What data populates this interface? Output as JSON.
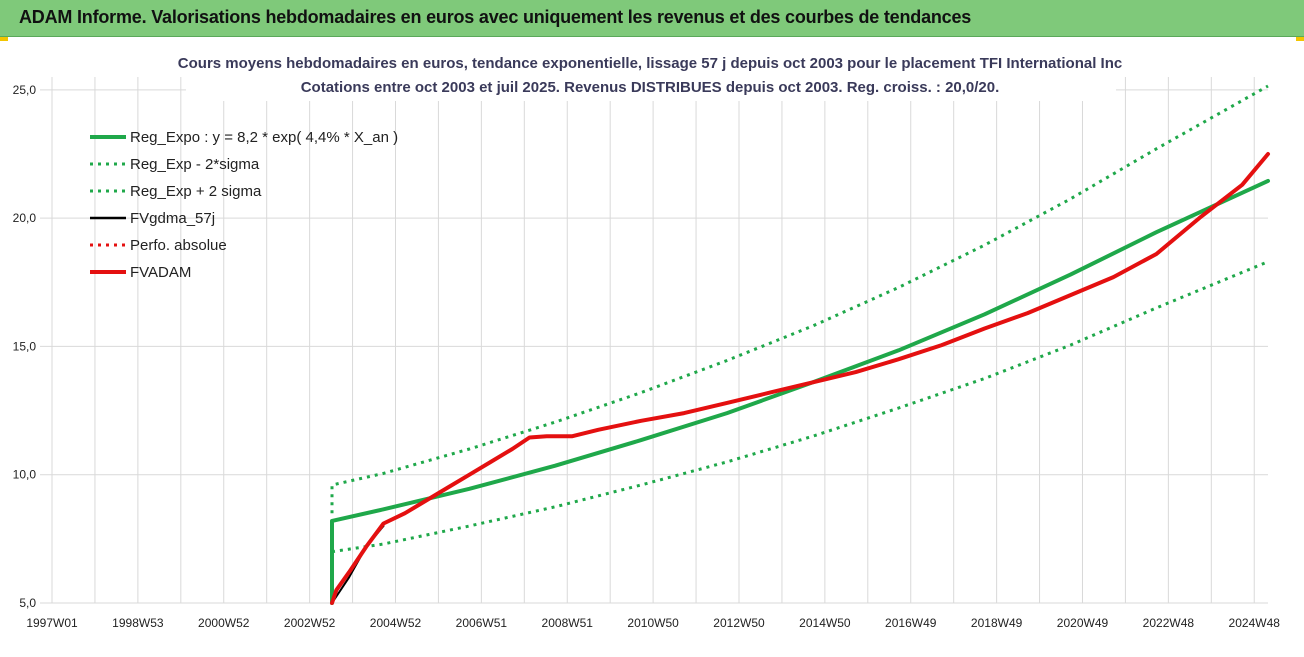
{
  "banner": {
    "title": "ADAM Informe. Valorisations hebdomadaires en euros avec uniquement les revenus et des courbes de tendances"
  },
  "colors": {
    "banner_bg": "#7fc97a",
    "reg_expo": "#1fa84a",
    "fvadam": "#e41010",
    "fvgdma": "#000000",
    "grid": "#d9d9d9"
  },
  "chart_data": {
    "type": "line",
    "title": "Cours moyens hebdomadaires en euros, tendance exponentielle, lissage 57 j depuis oct 2003 pour le placement TFI International Inc",
    "subtitle": "Cotations entre oct 2003 et juil 2025. Revenus DISTRIBUES depuis oct 2003. Reg. croiss. : 20,0/20.",
    "xlabel": "",
    "ylabel": "",
    "x_ticks": [
      "1997W01",
      "1998W53",
      "2000W52",
      "2002W52",
      "2004W52",
      "2006W51",
      "2008W51",
      "2010W50",
      "2012W50",
      "2014W50",
      "2016W49",
      "2018W49",
      "2020W49",
      "2022W48",
      "2024W48"
    ],
    "xlim": [
      1997.0,
      2025.6
    ],
    "y_ticks": [
      "5,0",
      "10,0",
      "15,0",
      "20,0",
      "25,0"
    ],
    "ylim": [
      5,
      25.5
    ],
    "grid": true,
    "legend_position": "top-left",
    "series": [
      {
        "name": "Reg_Expo : y = 8,2 * exp( 4,4% *  X_an )",
        "style": "solid",
        "color": "#1fa84a",
        "points": [
          [
            2003.8,
            5.0
          ],
          [
            2003.8,
            8.2
          ],
          [
            2005.0,
            8.65
          ],
          [
            2007.0,
            9.45
          ],
          [
            2009.0,
            10.35
          ],
          [
            2011.0,
            11.35
          ],
          [
            2013.0,
            12.4
          ],
          [
            2015.0,
            13.6
          ],
          [
            2017.0,
            14.85
          ],
          [
            2019.0,
            16.25
          ],
          [
            2021.0,
            17.8
          ],
          [
            2023.0,
            19.45
          ],
          [
            2025.6,
            21.45
          ]
        ]
      },
      {
        "name": "Reg_Exp - 2*sigma",
        "style": "dotted",
        "color": "#1fa84a",
        "points": [
          [
            2003.8,
            7.0
          ],
          [
            2005.0,
            7.3
          ],
          [
            2007.0,
            8.0
          ],
          [
            2009.0,
            8.75
          ],
          [
            2011.0,
            9.6
          ],
          [
            2013.0,
            10.5
          ],
          [
            2015.0,
            11.5
          ],
          [
            2017.0,
            12.6
          ],
          [
            2019.0,
            13.75
          ],
          [
            2021.0,
            15.05
          ],
          [
            2023.0,
            16.5
          ],
          [
            2025.6,
            18.3
          ]
        ]
      },
      {
        "name": "Reg_Exp + 2 sigma",
        "style": "dotted",
        "color": "#1fa84a",
        "points": [
          [
            2003.8,
            8.5
          ],
          [
            2003.8,
            9.6
          ],
          [
            2005.0,
            10.05
          ],
          [
            2007.0,
            11.0
          ],
          [
            2009.0,
            12.05
          ],
          [
            2011.0,
            13.2
          ],
          [
            2013.0,
            14.45
          ],
          [
            2015.0,
            15.8
          ],
          [
            2017.0,
            17.3
          ],
          [
            2019.0,
            18.95
          ],
          [
            2021.0,
            20.75
          ],
          [
            2023.0,
            22.7
          ],
          [
            2025.6,
            25.15
          ]
        ]
      },
      {
        "name": "FVgdma_57j",
        "style": "solid",
        "color": "#000000",
        "points": [
          [
            2003.8,
            5.0
          ],
          [
            2004.2,
            6.0
          ],
          [
            2004.6,
            7.2
          ],
          [
            2005.0,
            8.0
          ]
        ]
      },
      {
        "name": "Perfo. absolue",
        "style": "dotted",
        "color": "#e41010",
        "points": []
      },
      {
        "name": "FVADAM",
        "style": "solid",
        "color": "#e41010",
        "points": [
          [
            2003.8,
            5.0
          ],
          [
            2003.9,
            5.5
          ],
          [
            2004.2,
            6.2
          ],
          [
            2004.6,
            7.2
          ],
          [
            2005.0,
            8.1
          ],
          [
            2005.5,
            8.5
          ],
          [
            2006.0,
            9.0
          ],
          [
            2006.5,
            9.5
          ],
          [
            2007.0,
            10.0
          ],
          [
            2007.5,
            10.5
          ],
          [
            2008.0,
            11.0
          ],
          [
            2008.4,
            11.45
          ],
          [
            2008.8,
            11.5
          ],
          [
            2009.4,
            11.5
          ],
          [
            2010.0,
            11.75
          ],
          [
            2011.0,
            12.1
          ],
          [
            2012.0,
            12.4
          ],
          [
            2013.0,
            12.8
          ],
          [
            2014.0,
            13.2
          ],
          [
            2015.0,
            13.6
          ],
          [
            2016.0,
            14.0
          ],
          [
            2017.0,
            14.5
          ],
          [
            2018.0,
            15.05
          ],
          [
            2019.0,
            15.7
          ],
          [
            2020.0,
            16.3
          ],
          [
            2021.0,
            17.0
          ],
          [
            2022.0,
            17.7
          ],
          [
            2023.0,
            18.6
          ],
          [
            2024.0,
            20.0
          ],
          [
            2025.0,
            21.3
          ],
          [
            2025.6,
            22.5
          ]
        ]
      }
    ]
  }
}
